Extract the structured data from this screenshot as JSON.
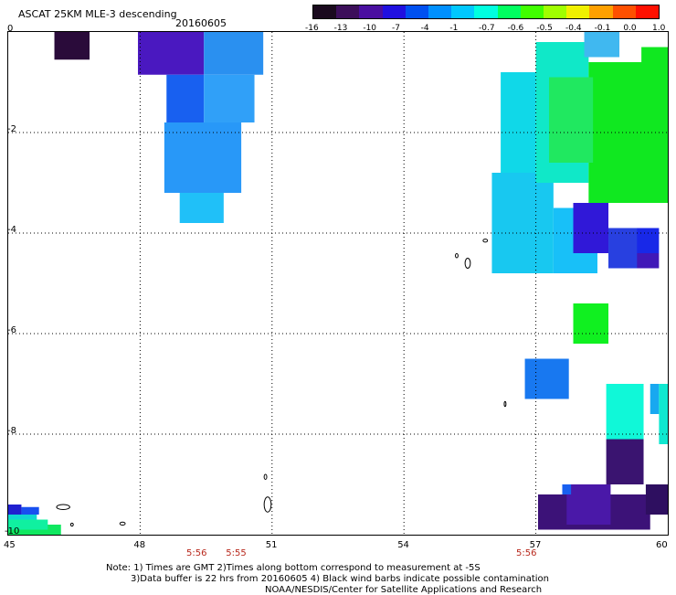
{
  "header": {
    "title": "ASCAT 25KM MLE-3 descending",
    "date": "20160605"
  },
  "colorbar": {
    "labels": [
      "-16",
      "-13",
      "-10",
      "-7",
      "-4",
      "-1",
      "-0.7",
      "-0.6",
      "-0.5",
      "-0.4",
      "-0.1",
      "0.0",
      "1.0"
    ],
    "colors": [
      "#1a0a1e",
      "#3c0f5a",
      "#4a0fa0",
      "#2010e0",
      "#0050f0",
      "#0090ff",
      "#00c8ff",
      "#00ffe0",
      "#00ff60",
      "#40ff00",
      "#a0ff00",
      "#f0f000",
      "#ffa000",
      "#ff5000",
      "#ff1000"
    ]
  },
  "axes": {
    "x_ticks": [
      "45",
      "48",
      "51",
      "54",
      "57",
      "60"
    ],
    "y_ticks": [
      "0",
      "-2",
      "-4",
      "-6",
      "-8",
      "-10"
    ],
    "x_range": [
      45,
      60
    ],
    "y_range": [
      -10,
      0
    ],
    "grid": true
  },
  "times": [
    {
      "label": "5:56",
      "lon": 49.3
    },
    {
      "label": "5:55",
      "lon": 50.2
    },
    {
      "label": "5:56",
      "lon": 56.8
    }
  ],
  "notes": {
    "line1": "Note: 1) Times are GMT 2)Times along bottom correspond to measurement at -5S",
    "line2": "3)Data buffer is 22 hrs from 20160605 4) Black wind barbs indicate possible contamination",
    "line3": "NOAA/NESDIS/Center for Satellite Applications and Research"
  },
  "swaths": [
    {
      "lon0": 46.05,
      "lon1": 46.85,
      "lat0": -0.55,
      "lat1": 0.0,
      "color": "#2a0b3a"
    },
    {
      "lon0": 47.95,
      "lon1": 49.45,
      "lat0": -0.85,
      "lat1": 0.0,
      "color": "#4a18c0"
    },
    {
      "lon0": 49.45,
      "lon1": 50.8,
      "lat0": -0.85,
      "lat1": 0.0,
      "color": "#2a90f0"
    },
    {
      "lon0": 48.6,
      "lon1": 49.45,
      "lat0": -1.8,
      "lat1": -0.85,
      "color": "#1860f0"
    },
    {
      "lon0": 49.45,
      "lon1": 50.6,
      "lat0": -1.8,
      "lat1": -0.85,
      "color": "#30a0f8"
    },
    {
      "lon0": 48.55,
      "lon1": 50.3,
      "lat0": -3.2,
      "lat1": -1.8,
      "color": "#2898f8"
    },
    {
      "lon0": 48.9,
      "lon1": 49.9,
      "lat0": -3.8,
      "lat1": -3.2,
      "color": "#20c0f8"
    },
    {
      "lon0": 56.2,
      "lon1": 57.0,
      "lat0": -3.0,
      "lat1": -0.8,
      "color": "#10d8e8"
    },
    {
      "lon0": 56.0,
      "lon1": 57.4,
      "lat0": -4.8,
      "lat1": -2.8,
      "color": "#18c8f0"
    },
    {
      "lon0": 57.4,
      "lon1": 58.4,
      "lat0": -4.8,
      "lat1": -3.5,
      "color": "#18c0f8"
    },
    {
      "lon0": 57.0,
      "lon1": 58.2,
      "lat0": -3.0,
      "lat1": -0.2,
      "color": "#10e8c8"
    },
    {
      "lon0": 58.2,
      "lon1": 60.0,
      "lat0": -3.4,
      "lat1": -0.6,
      "color": "#10e820"
    },
    {
      "lon0": 57.3,
      "lon1": 58.3,
      "lat0": -2.6,
      "lat1": -0.9,
      "color": "#20e860"
    },
    {
      "lon0": 58.1,
      "lon1": 58.9,
      "lat0": -0.5,
      "lat1": 0.0,
      "color": "#40b8f0"
    },
    {
      "lon0": 59.4,
      "lon1": 60.0,
      "lat0": -0.65,
      "lat1": -0.3,
      "color": "#10e820"
    },
    {
      "lon0": 57.85,
      "lon1": 58.65,
      "lat0": -4.4,
      "lat1": -3.4,
      "color": "#3018d8"
    },
    {
      "lon0": 58.65,
      "lon1": 59.75,
      "lat0": -4.7,
      "lat1": -3.9,
      "color": "#2840e0"
    },
    {
      "lon0": 59.3,
      "lon1": 59.8,
      "lat0": -4.4,
      "lat1": -3.9,
      "color": "#1828e8"
    },
    {
      "lon0": 59.3,
      "lon1": 59.8,
      "lat0": -4.7,
      "lat1": -4.4,
      "color": "#4018b8"
    },
    {
      "lon0": 57.85,
      "lon1": 58.65,
      "lat0": -6.2,
      "lat1": -5.4,
      "color": "#10f020"
    },
    {
      "lon0": 56.75,
      "lon1": 57.75,
      "lat0": -7.3,
      "lat1": -6.5,
      "color": "#1878f0"
    },
    {
      "lon0": 58.6,
      "lon1": 59.45,
      "lat0": -8.1,
      "lat1": -7.0,
      "color": "#10f8d8"
    },
    {
      "lon0": 59.6,
      "lon1": 59.8,
      "lat0": -7.6,
      "lat1": -7.0,
      "color": "#18a8f0"
    },
    {
      "lon0": 59.8,
      "lon1": 60.0,
      "lat0": -8.2,
      "lat1": -7.0,
      "color": "#10e8d0"
    },
    {
      "lon0": 58.6,
      "lon1": 59.45,
      "lat0": -9.0,
      "lat1": -8.1,
      "color": "#3a1470"
    },
    {
      "lon0": 57.05,
      "lon1": 59.6,
      "lat0": -9.9,
      "lat1": -9.2,
      "color": "#3c1278"
    },
    {
      "lon0": 57.7,
      "lon1": 58.7,
      "lat0": -9.8,
      "lat1": -9.0,
      "color": "#4a18a8"
    },
    {
      "lon0": 59.5,
      "lon1": 60.0,
      "lat0": -9.6,
      "lat1": -9.0,
      "color": "#2e0f60"
    },
    {
      "lon0": 57.6,
      "lon1": 57.8,
      "lat0": -9.2,
      "lat1": -9.0,
      "color": "#1860f0"
    },
    {
      "lon0": 45.0,
      "lon1": 45.3,
      "lat0": -9.6,
      "lat1": -9.4,
      "color": "#2020d0"
    },
    {
      "lon0": 45.0,
      "lon1": 45.65,
      "lat0": -9.8,
      "lat1": -9.6,
      "color": "#10d8d0"
    },
    {
      "lon0": 45.0,
      "lon1": 46.2,
      "lat0": -10.0,
      "lat1": -9.8,
      "color": "#10e860"
    },
    {
      "lon0": 45.0,
      "lon1": 45.9,
      "lat0": -9.9,
      "lat1": -9.7,
      "color": "#10f0a0"
    },
    {
      "lon0": 45.3,
      "lon1": 45.7,
      "lat0": -9.6,
      "lat1": -9.45,
      "color": "#1850f0"
    }
  ],
  "coastlines": [
    {
      "lon": 46.25,
      "lat": -9.45,
      "rx": 0.15,
      "ry": 0.05
    },
    {
      "lon": 46.45,
      "lat": -9.8,
      "rx": 0.03,
      "ry": 0.03
    },
    {
      "lon": 47.6,
      "lat": -9.78,
      "rx": 0.06,
      "ry": 0.03
    },
    {
      "lon": 50.9,
      "lat": -9.4,
      "rx": 0.08,
      "ry": 0.15
    },
    {
      "lon": 50.85,
      "lat": -8.85,
      "rx": 0.03,
      "ry": 0.05
    },
    {
      "lon": 55.45,
      "lat": -4.6,
      "rx": 0.06,
      "ry": 0.1
    },
    {
      "lon": 55.2,
      "lat": -4.45,
      "rx": 0.03,
      "ry": 0.04
    },
    {
      "lon": 55.85,
      "lat": -4.15,
      "rx": 0.05,
      "ry": 0.03
    },
    {
      "lon": 56.3,
      "lat": -7.4,
      "rx": 0.02,
      "ry": 0.05
    }
  ]
}
